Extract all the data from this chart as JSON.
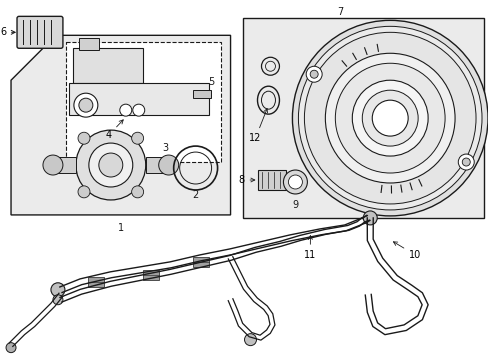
{
  "bg_color": "#ffffff",
  "line_color": "#1a1a1a",
  "gray_fill": "#e8e8e8",
  "light_fill": "#f0f0f0",
  "fig_width": 4.89,
  "fig_height": 3.6,
  "dpi": 100
}
